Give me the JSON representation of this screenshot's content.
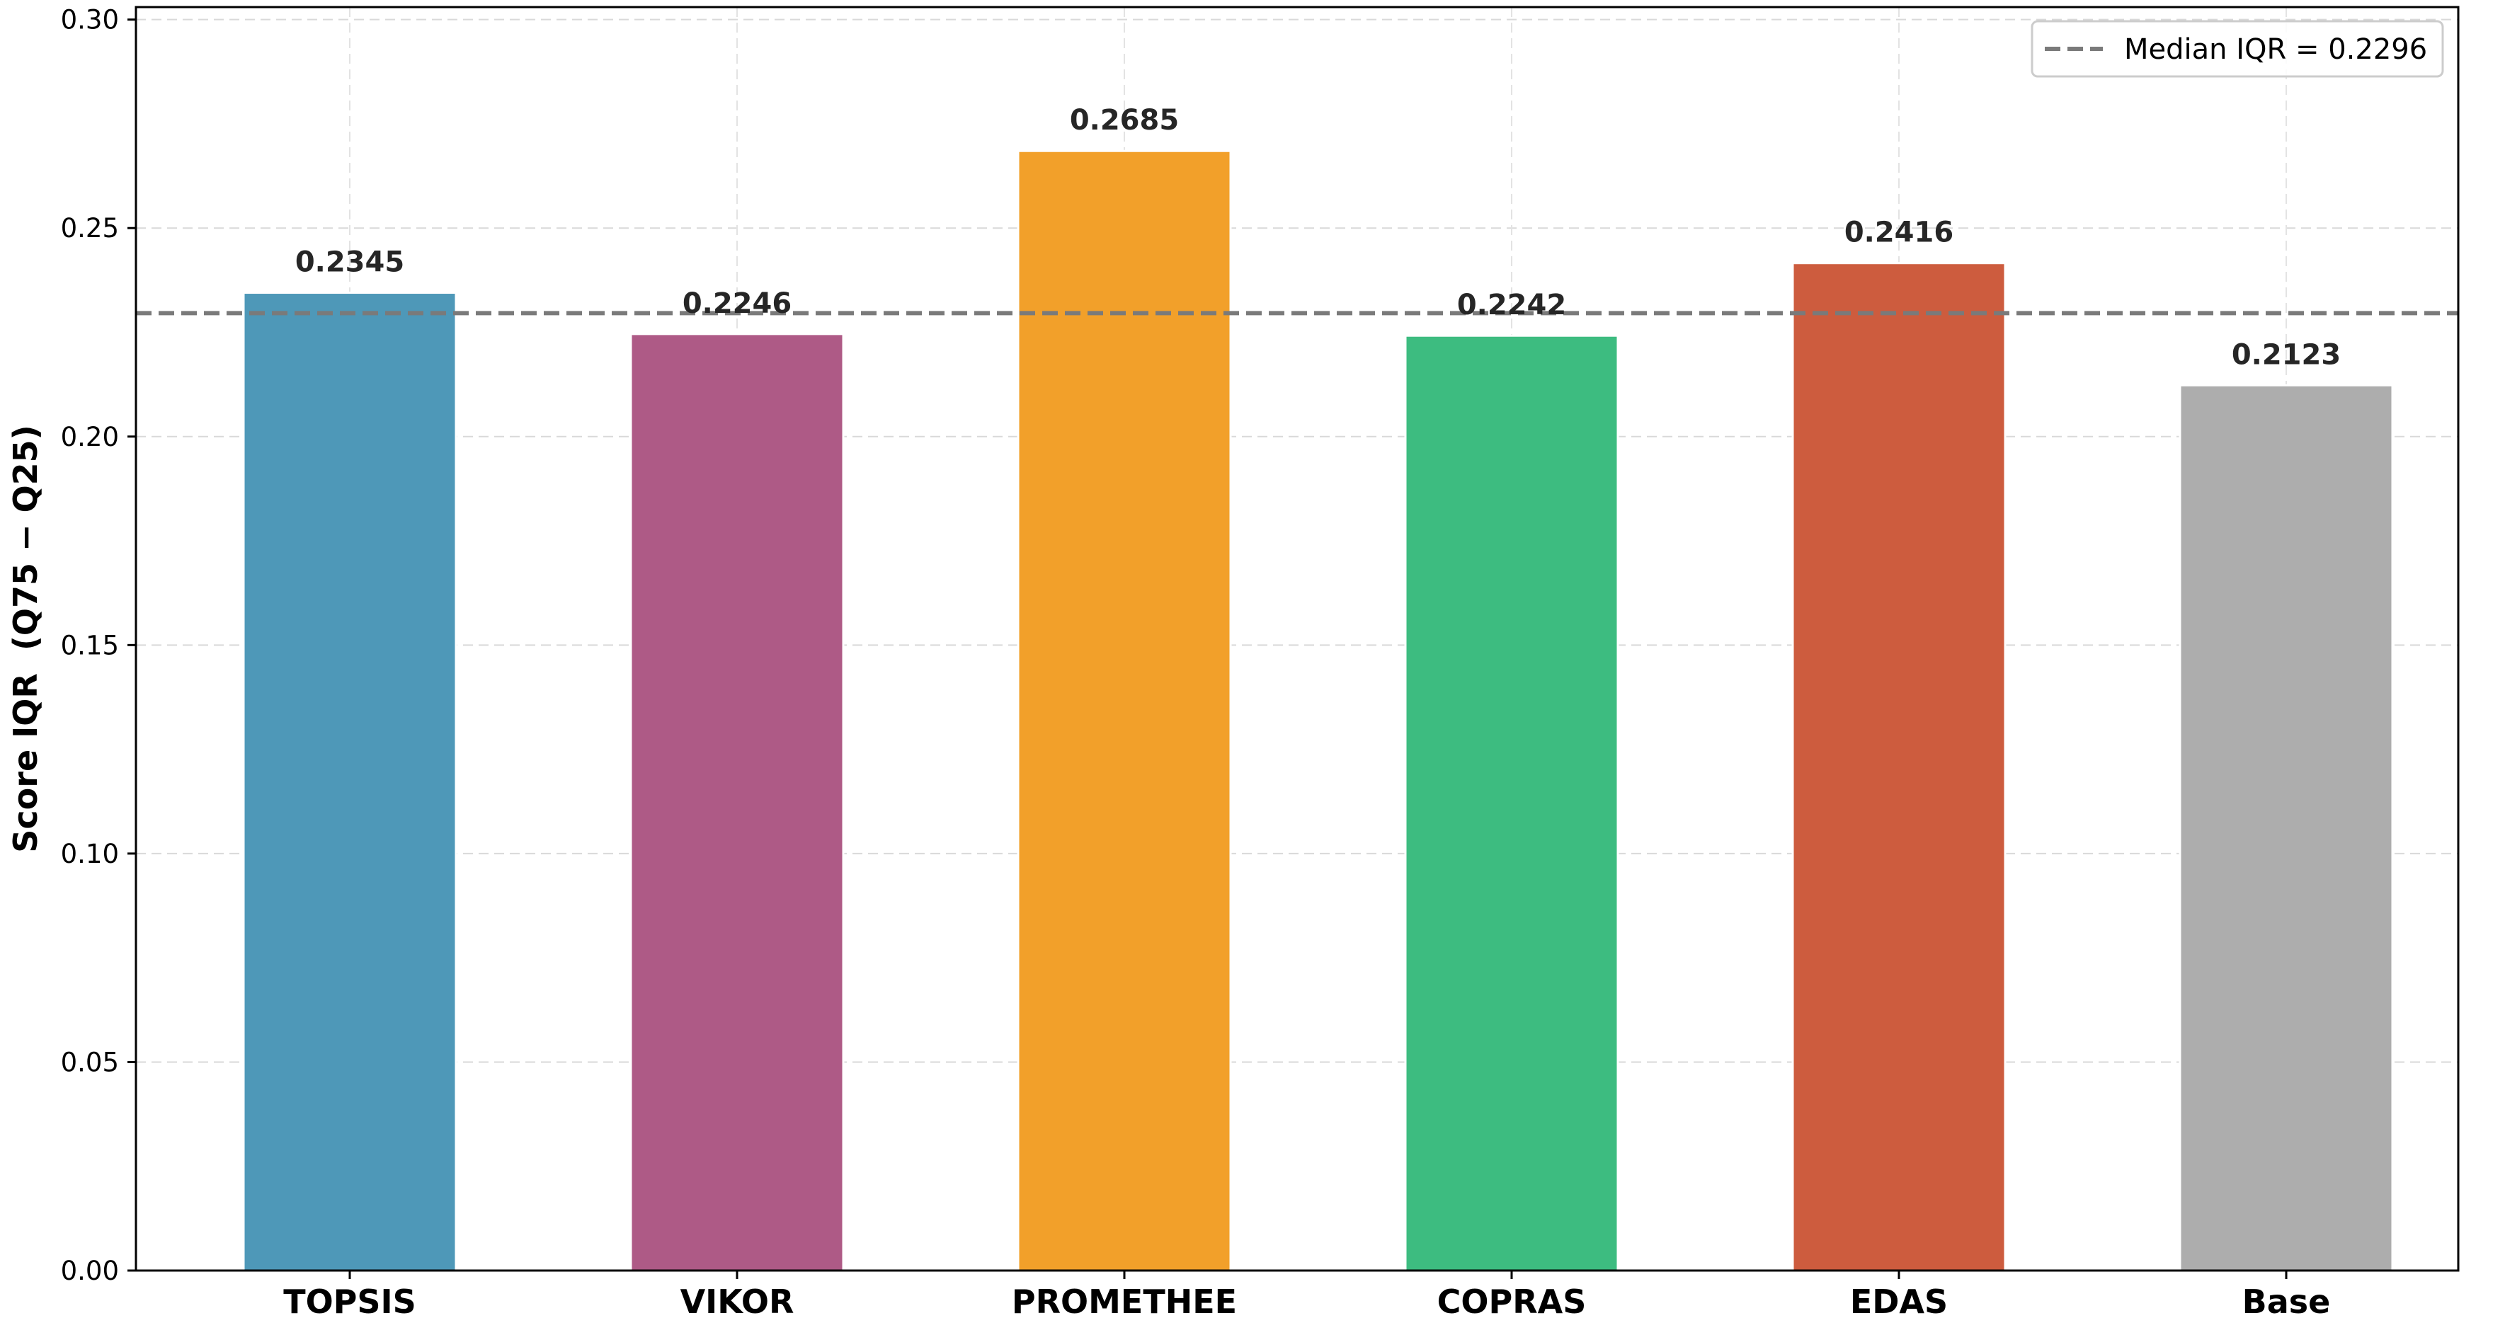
{
  "chart_data": {
    "type": "bar",
    "title": "",
    "xlabel": "",
    "ylabel": "Score IQR  (Q75 − Q25)",
    "categories": [
      "TOPSIS",
      "VIKOR",
      "PROMETHEE",
      "COPRAS",
      "EDAS",
      "Base"
    ],
    "values": [
      0.2345,
      0.2246,
      0.2685,
      0.2242,
      0.2416,
      0.2123
    ],
    "value_labels": [
      "0.2345",
      "0.2246",
      "0.2685",
      "0.2242",
      "0.2416",
      "0.2123"
    ],
    "colors": [
      "#4e98b8",
      "#ae5a86",
      "#f2a02a",
      "#3dbc80",
      "#cd5c3e",
      "#adadad"
    ],
    "ylim": [
      0,
      0.303
    ],
    "yticks": [
      0.0,
      0.05,
      0.1,
      0.15,
      0.2,
      0.25,
      0.3
    ],
    "ytick_labels": [
      "0.00",
      "0.05",
      "0.10",
      "0.15",
      "0.20",
      "0.25",
      "0.30"
    ],
    "grid": true,
    "legend_position": "top-right",
    "reference_line": {
      "value": 0.2296,
      "label": "Median IQR = 0.2296",
      "style": "dashed",
      "color": "#7a7a7a"
    }
  }
}
